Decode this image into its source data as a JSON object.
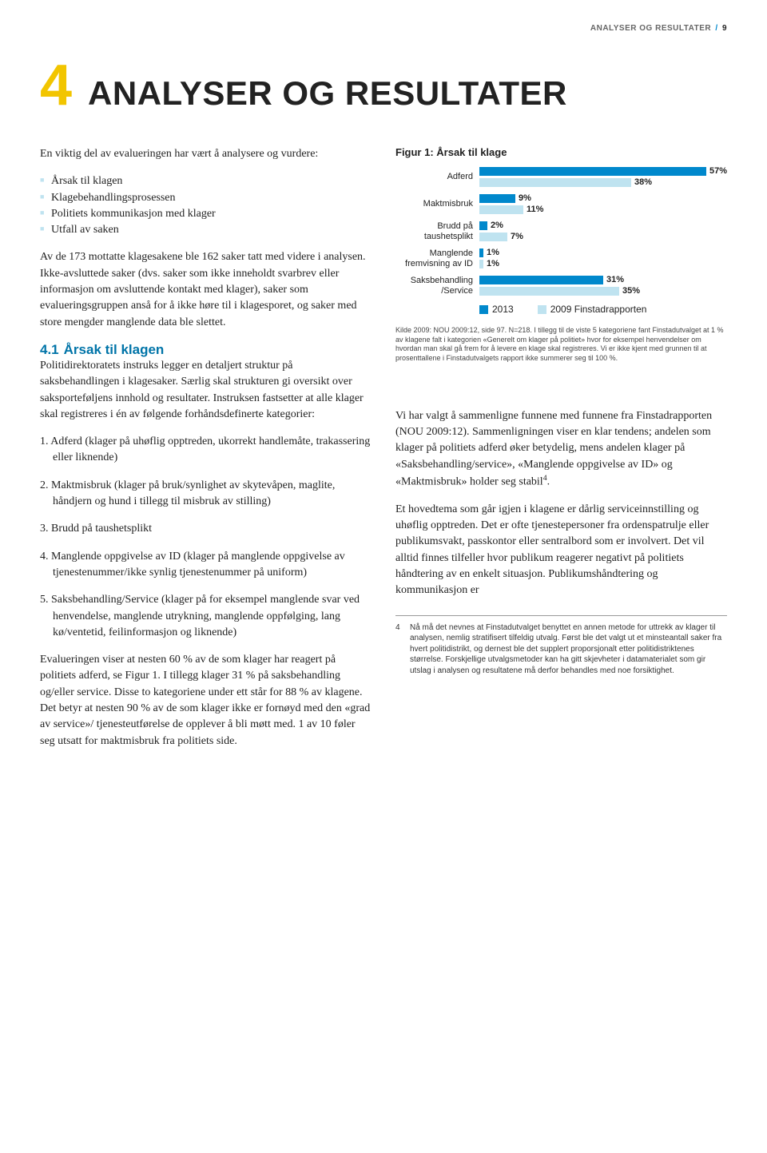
{
  "running_head": {
    "section": "ANALYSER OG RESULTATER",
    "page": "9"
  },
  "chapter": {
    "number": "4",
    "title": "ANALYSER OG RESULTATER"
  },
  "left": {
    "intro_lead": "En viktig del av evalueringen har vært å analysere og vurdere:",
    "intro_bullets": [
      "Årsak til klagen",
      "Klagebehandlingsprosessen",
      "Politiets kommunikasjon med klager",
      "Utfall av saken"
    ],
    "para_analysis": "Av de 173 mottatte klagesakene ble 162 saker tatt med videre i analysen. Ikke-avsluttede saker (dvs. saker som ikke inneholdt svarbrev eller informasjon om avsluttende kontakt med klager), saker som evalueringsgruppen anså for å ikke høre til i klagesporet, og saker med store mengder manglende data ble slettet.",
    "sect_num": "4.1",
    "sect_title": "Årsak til klagen",
    "sect_para": "Politidirektoratets instruks legger en detaljert struktur på saksbehandlingen i klagesaker. Særlig skal strukturen gi oversikt over saksporteføljens innhold og resultater. Instruksen fastsetter at alle klager skal registreres i én av følgende forhåndsdefinerte kategorier:",
    "numbered": [
      "1. Adferd (klager på uhøflig opptreden, ukorrekt handlemåte, trakassering eller liknende)",
      "2. Maktmisbruk (klager på bruk/synlighet av skytevåpen, maglite, håndjern og hund i tillegg til misbruk av stilling)",
      "3. Brudd på taushetsplikt",
      "4. Manglende oppgivelse av ID (klager på manglende oppgivelse av tjenestenummer/ikke synlig tjenestenummer på uniform)",
      "5. Saksbehandling/Service (klager på for eksempel manglende svar ved henvendelse, manglende utrykning, manglende oppfølging, lang kø/ventetid, feilinformasjon og liknende)"
    ],
    "eval_para": "Evalueringen viser at nesten 60 % av de som klager har reagert på politiets adferd, se Figur 1. I tillegg klager 31 % på saksbehandling og/eller service. Disse to kategoriene under ett står for 88 % av klagene. Det betyr at nesten 90 % av de som klager ikke er fornøyd med den «grad av service»/ tjenesteutførelse de opplever å bli møtt med. 1 av 10 føler seg utsatt for maktmisbruk fra politiets side."
  },
  "chart": {
    "title": "Figur 1: Årsak til klage",
    "max_value": 62,
    "series_colors": {
      "2013": "#0088cc",
      "2009": "#bfe3f0"
    },
    "categories": [
      {
        "label": "Adferd",
        "v2013": 57,
        "v2009": 38
      },
      {
        "label": "Maktmisbruk",
        "v2013": 9,
        "v2009": 11
      },
      {
        "label": "Brudd på\ntaushetsplikt",
        "v2013": 2,
        "v2009": 7
      },
      {
        "label": "Manglende\nfremvisning av ID",
        "v2013": 1,
        "v2009": 1
      },
      {
        "label": "Saksbehandling\n/Service",
        "v2013": 31,
        "v2009": 35
      }
    ],
    "legend": [
      {
        "label": "2013",
        "color": "#0088cc"
      },
      {
        "label": "2009 Finstadrapporten",
        "color": "#bfe3f0"
      }
    ],
    "source": "Kilde 2009: NOU 2009:12, side 97. N=218. I tillegg til de viste 5 kategoriene fant Finstadutvalget at 1 % av klagene falt i kategorien «Generelt om klager på politiet» hvor for eksempel henvendelser om hvordan man skal gå frem for å levere en klage skal registreres. Vi er ikke kjent med grunnen til at prosenttallene i Finstadutvalgets rapport ikke summerer seg til 100 %."
  },
  "right": {
    "compare_para": "Vi har valgt å sammenligne funnene med funnene fra Finstadrapporten (NOU 2009:12). Sammenligningen viser en klar tendens; andelen som klager på politiets adferd øker betydelig, mens andelen klager på «Saksbehandling/service», «Manglende oppgivelse av ID» og «Maktmisbruk» holder seg stabil",
    "compare_sup": "4",
    "compare_tail": ".",
    "theme_para": "Et hovedtema som går igjen i klagene er dårlig serviceinnstilling og uhøflig opptreden. Det er ofte tjenestepersoner fra ordenspatrulje eller publikumsvakt, passkontor eller sentralbord som er involvert. Det vil alltid finnes tilfeller hvor publikum reagerer negativt på politiets håndtering av en enkelt situasjon. Publikumshåndtering og kommunikasjon er",
    "footnote_num": "4",
    "footnote_text": "Nå må det nevnes at Finstadutvalget benyttet en annen metode for uttrekk av klager til analysen, nemlig stratifisert tilfeldig utvalg. Først ble det valgt ut et minsteantall saker fra hvert politidistrikt, og dernest ble det supplert proporsjonalt etter politidistriktenes størrelse. Forskjellige utvalgsmetoder kan ha gitt skjevheter i datamaterialet som gir utslag i analysen og resultatene må derfor behandles med noe forsiktighet."
  }
}
